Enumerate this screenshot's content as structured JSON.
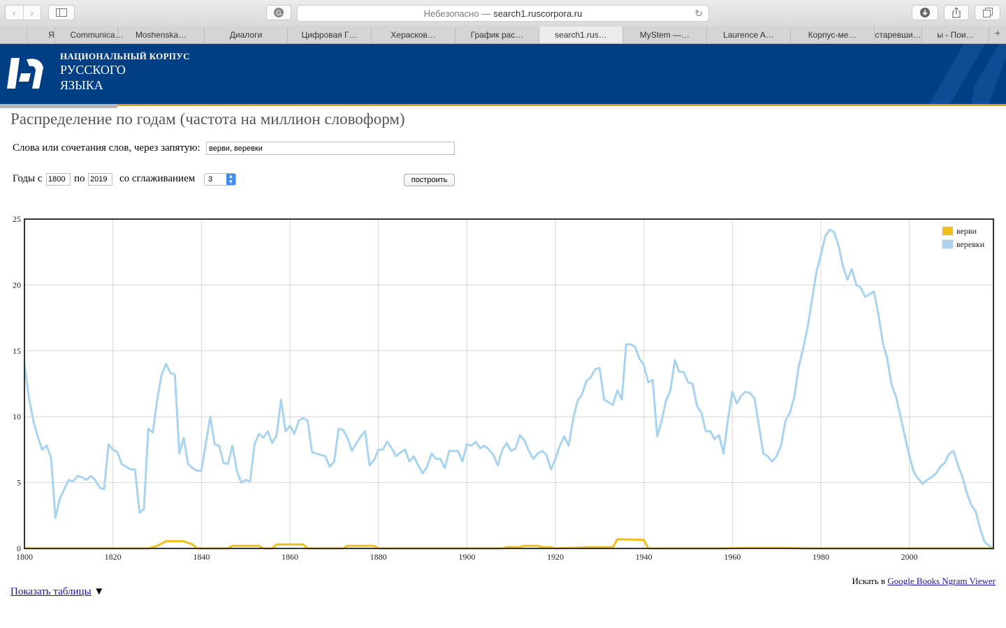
{
  "browser": {
    "address_prefix": "Небезопасно —",
    "address_host": "search1.ruscorpora.ru",
    "tabs": [
      "Я",
      "Communica…",
      "Moshenska…",
      "Диалоги",
      "Цифровая Г…",
      "Херасков…",
      "График рас…",
      "search1.rus…",
      "MyStem —…",
      "Laurence A…",
      "Корпус-ме…",
      "старевши…",
      "ы - Пои…"
    ],
    "active_tab": 7
  },
  "header": {
    "line1": "НАЦИОНАЛЬНЫЙ КОРПУС",
    "line2": "РУССКОГО",
    "line3": "ЯЗЫКА",
    "bg_color": "#013f84",
    "stripe_color": "#e99a1c"
  },
  "page": {
    "title": "Распределение по годам (частота на миллион словоформ)",
    "words_label": "Слова или сочетания слов, через запятую:",
    "words_value": "верви, веревки",
    "years_label": "Годы с",
    "year_from": "1800",
    "to_label": "по",
    "year_to": "2019",
    "smoothing_label": "со сглаживанием",
    "smoothing_value": "3",
    "build_button": "построить",
    "ngram_prefix": "Искать в",
    "ngram_link": "Google Books Ngram Viewer",
    "show_tables": "Показать таблицы",
    "show_tables_arrow": "▼"
  },
  "chart_data": {
    "type": "line",
    "xlim": [
      1800,
      2019
    ],
    "ylim": [
      0,
      25
    ],
    "x_ticks": [
      1800,
      1820,
      1840,
      1860,
      1880,
      1900,
      1920,
      1940,
      1960,
      1980,
      2000
    ],
    "y_ticks": [
      0,
      5,
      10,
      15,
      20,
      25
    ],
    "grid": true,
    "legend_position": "top-right",
    "series": [
      {
        "name": "верви",
        "color": "#f0bf1a",
        "points": [
          [
            1800,
            0
          ],
          [
            1828,
            0
          ],
          [
            1830,
            0.2
          ],
          [
            1832,
            0.55
          ],
          [
            1836,
            0.55
          ],
          [
            1838,
            0.3
          ],
          [
            1839,
            0
          ],
          [
            1846,
            0
          ],
          [
            1847,
            0.2
          ],
          [
            1853,
            0.2
          ],
          [
            1854,
            0
          ],
          [
            1856,
            0
          ],
          [
            1857,
            0.3
          ],
          [
            1863,
            0.3
          ],
          [
            1864,
            0
          ],
          [
            1872,
            0
          ],
          [
            1873,
            0.2
          ],
          [
            1879,
            0.2
          ],
          [
            1880,
            0
          ],
          [
            1908,
            0
          ],
          [
            1909,
            0.1
          ],
          [
            1912,
            0.1
          ],
          [
            1913,
            0.2
          ],
          [
            1916,
            0.2
          ],
          [
            1917,
            0.1
          ],
          [
            1919,
            0.1
          ],
          [
            1920,
            0
          ],
          [
            1928,
            0.1
          ],
          [
            1933,
            0.1
          ],
          [
            1934,
            0.7
          ],
          [
            1940,
            0.65
          ],
          [
            1941,
            0
          ],
          [
            1958,
            0
          ],
          [
            1962,
            0.05
          ],
          [
            1972,
            0.05
          ],
          [
            1976,
            0
          ],
          [
            2019,
            0
          ]
        ]
      },
      {
        "name": "веревки",
        "color": "#a9d4f0",
        "points": [
          [
            1800,
            14
          ],
          [
            1801,
            11.5
          ],
          [
            1802,
            9.7
          ],
          [
            1803,
            8.5
          ],
          [
            1804,
            7.5
          ],
          [
            1805,
            7.8
          ],
          [
            1806,
            6.9
          ],
          [
            1807,
            2.3
          ],
          [
            1808,
            3.8
          ],
          [
            1809,
            4.5
          ],
          [
            1810,
            5.2
          ],
          [
            1811,
            5.1
          ],
          [
            1812,
            5.5
          ],
          [
            1813,
            5.4
          ],
          [
            1814,
            5.2
          ],
          [
            1815,
            5.5
          ],
          [
            1816,
            5.2
          ],
          [
            1817,
            4.6
          ],
          [
            1818,
            4.5
          ],
          [
            1819,
            7.9
          ],
          [
            1820,
            7.5
          ],
          [
            1821,
            7.3
          ],
          [
            1822,
            6.4
          ],
          [
            1823,
            6.2
          ],
          [
            1824,
            6.0
          ],
          [
            1825,
            6.0
          ],
          [
            1826,
            2.7
          ],
          [
            1827,
            3.0
          ],
          [
            1828,
            9.1
          ],
          [
            1829,
            8.8
          ],
          [
            1830,
            11.3
          ],
          [
            1831,
            13.2
          ],
          [
            1832,
            14.0
          ],
          [
            1833,
            13.3
          ],
          [
            1834,
            13.2
          ],
          [
            1835,
            7.2
          ],
          [
            1836,
            8.4
          ],
          [
            1837,
            6.4
          ],
          [
            1838,
            6.1
          ],
          [
            1839,
            5.9
          ],
          [
            1840,
            5.9
          ],
          [
            1841,
            8.0
          ],
          [
            1842,
            10.0
          ],
          [
            1843,
            7.9
          ],
          [
            1844,
            7.8
          ],
          [
            1845,
            6.5
          ],
          [
            1846,
            6.4
          ],
          [
            1847,
            7.8
          ],
          [
            1848,
            5.9
          ],
          [
            1849,
            5.0
          ],
          [
            1850,
            5.2
          ],
          [
            1851,
            5.1
          ],
          [
            1852,
            7.9
          ],
          [
            1853,
            8.7
          ],
          [
            1854,
            8.4
          ],
          [
            1855,
            8.9
          ],
          [
            1856,
            8.0
          ],
          [
            1857,
            8.6
          ],
          [
            1858,
            11.3
          ],
          [
            1859,
            8.9
          ],
          [
            1860,
            9.3
          ],
          [
            1861,
            8.7
          ],
          [
            1862,
            9.7
          ],
          [
            1863,
            9.9
          ],
          [
            1864,
            9.7
          ],
          [
            1865,
            7.3
          ],
          [
            1866,
            7.2
          ],
          [
            1867,
            7.1
          ],
          [
            1868,
            7.0
          ],
          [
            1869,
            6.2
          ],
          [
            1870,
            6.6
          ],
          [
            1871,
            9.1
          ],
          [
            1872,
            9.0
          ],
          [
            1873,
            8.4
          ],
          [
            1874,
            7.4
          ],
          [
            1875,
            8.0
          ],
          [
            1876,
            8.5
          ],
          [
            1877,
            8.9
          ],
          [
            1878,
            6.3
          ],
          [
            1879,
            6.7
          ],
          [
            1880,
            7.5
          ],
          [
            1881,
            7.5
          ],
          [
            1882,
            8.1
          ],
          [
            1883,
            7.6
          ],
          [
            1884,
            7.0
          ],
          [
            1885,
            7.3
          ],
          [
            1886,
            7.5
          ],
          [
            1887,
            6.6
          ],
          [
            1888,
            7.0
          ],
          [
            1889,
            6.3
          ],
          [
            1890,
            5.7
          ],
          [
            1891,
            6.2
          ],
          [
            1892,
            7.2
          ],
          [
            1893,
            6.8
          ],
          [
            1894,
            6.8
          ],
          [
            1895,
            6.1
          ],
          [
            1896,
            7.4
          ],
          [
            1897,
            7.4
          ],
          [
            1898,
            7.4
          ],
          [
            1899,
            6.6
          ],
          [
            1900,
            7.9
          ],
          [
            1901,
            7.8
          ],
          [
            1902,
            8.1
          ],
          [
            1903,
            7.6
          ],
          [
            1904,
            7.8
          ],
          [
            1905,
            7.5
          ],
          [
            1906,
            7.1
          ],
          [
            1907,
            6.3
          ],
          [
            1908,
            7.5
          ],
          [
            1909,
            8.0
          ],
          [
            1910,
            7.4
          ],
          [
            1911,
            7.6
          ],
          [
            1912,
            8.6
          ],
          [
            1913,
            8.2
          ],
          [
            1914,
            7.4
          ],
          [
            1915,
            6.8
          ],
          [
            1916,
            7.2
          ],
          [
            1917,
            7.4
          ],
          [
            1918,
            7.1
          ],
          [
            1919,
            6.0
          ],
          [
            1920,
            6.8
          ],
          [
            1921,
            7.8
          ],
          [
            1922,
            8.5
          ],
          [
            1923,
            7.8
          ],
          [
            1924,
            9.8
          ],
          [
            1925,
            11.2
          ],
          [
            1926,
            11.7
          ],
          [
            1927,
            12.7
          ],
          [
            1928,
            13.0
          ],
          [
            1929,
            13.6
          ],
          [
            1930,
            13.7
          ],
          [
            1931,
            11.3
          ],
          [
            1932,
            11.1
          ],
          [
            1933,
            10.9
          ],
          [
            1934,
            12.0
          ],
          [
            1935,
            11.3
          ],
          [
            1936,
            15.5
          ],
          [
            1937,
            15.5
          ],
          [
            1938,
            15.3
          ],
          [
            1939,
            14.4
          ],
          [
            1940,
            13.9
          ],
          [
            1941,
            12.6
          ],
          [
            1942,
            12.8
          ],
          [
            1943,
            8.5
          ],
          [
            1944,
            9.7
          ],
          [
            1945,
            11.2
          ],
          [
            1946,
            12.0
          ],
          [
            1947,
            14.3
          ],
          [
            1948,
            13.4
          ],
          [
            1949,
            13.4
          ],
          [
            1950,
            12.6
          ],
          [
            1951,
            12.5
          ],
          [
            1952,
            10.8
          ],
          [
            1953,
            10.3
          ],
          [
            1954,
            8.9
          ],
          [
            1955,
            8.9
          ],
          [
            1956,
            8.3
          ],
          [
            1957,
            8.6
          ],
          [
            1958,
            7.2
          ],
          [
            1959,
            9.8
          ],
          [
            1960,
            11.9
          ],
          [
            1961,
            11.0
          ],
          [
            1962,
            11.6
          ],
          [
            1963,
            11.9
          ],
          [
            1964,
            11.8
          ],
          [
            1965,
            11.4
          ],
          [
            1966,
            9.3
          ],
          [
            1967,
            7.2
          ],
          [
            1968,
            7.0
          ],
          [
            1969,
            6.6
          ],
          [
            1970,
            7.0
          ],
          [
            1971,
            7.8
          ],
          [
            1972,
            9.7
          ],
          [
            1973,
            10.3
          ],
          [
            1974,
            11.5
          ],
          [
            1975,
            13.8
          ],
          [
            1976,
            15.2
          ],
          [
            1977,
            16.8
          ],
          [
            1978,
            18.9
          ],
          [
            1979,
            21.0
          ],
          [
            1980,
            22.3
          ],
          [
            1981,
            23.7
          ],
          [
            1982,
            24.2
          ],
          [
            1983,
            24.0
          ],
          [
            1984,
            23.0
          ],
          [
            1985,
            21.4
          ],
          [
            1986,
            20.4
          ],
          [
            1987,
            21.2
          ],
          [
            1988,
            20.0
          ],
          [
            1989,
            19.8
          ],
          [
            1990,
            19.1
          ],
          [
            1991,
            19.3
          ],
          [
            1992,
            19.5
          ],
          [
            1993,
            17.8
          ],
          [
            1994,
            15.6
          ],
          [
            1995,
            14.4
          ],
          [
            1996,
            12.4
          ],
          [
            1997,
            11.5
          ],
          [
            1998,
            10.0
          ],
          [
            1999,
            8.5
          ],
          [
            2000,
            7.0
          ],
          [
            2001,
            5.8
          ],
          [
            2002,
            5.3
          ],
          [
            2003,
            4.9
          ],
          [
            2004,
            5.2
          ],
          [
            2005,
            5.4
          ],
          [
            2006,
            5.7
          ],
          [
            2007,
            6.2
          ],
          [
            2008,
            6.5
          ],
          [
            2009,
            7.2
          ],
          [
            2010,
            7.4
          ],
          [
            2011,
            6.3
          ],
          [
            2012,
            5.4
          ],
          [
            2013,
            4.2
          ],
          [
            2014,
            3.3
          ],
          [
            2015,
            2.8
          ],
          [
            2016,
            1.5
          ],
          [
            2017,
            0.5
          ],
          [
            2018,
            0.2
          ],
          [
            2019,
            0
          ]
        ]
      }
    ]
  }
}
